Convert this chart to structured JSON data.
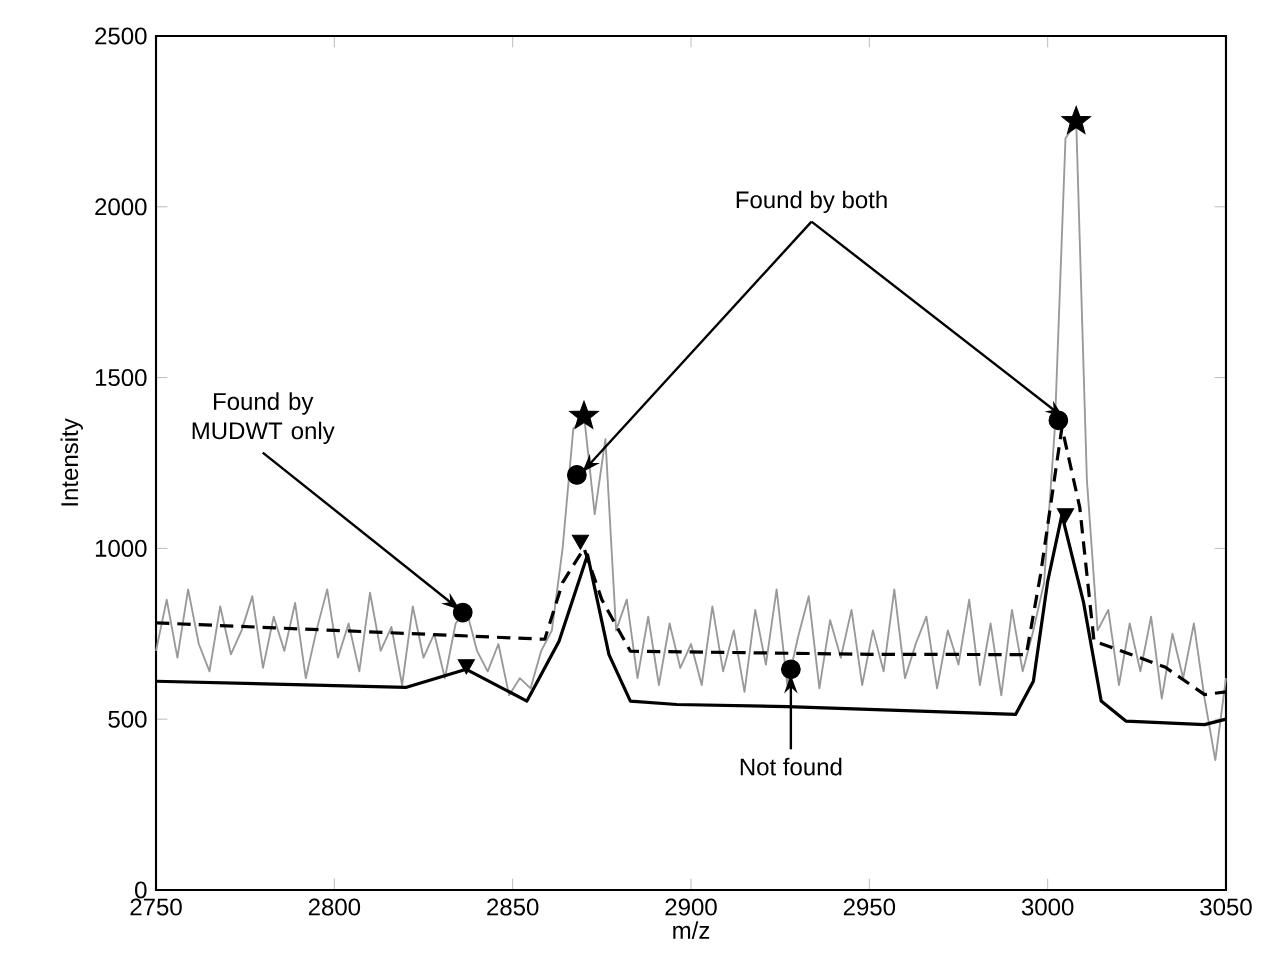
{
  "chart_data": {
    "type": "line",
    "xlabel": "m/z",
    "ylabel": "Intensity",
    "xlim": [
      2750,
      3050
    ],
    "ylim": [
      0,
      2500
    ],
    "xticks": [
      2750,
      2800,
      2850,
      2900,
      2950,
      3000,
      3050
    ],
    "yticks": [
      0,
      500,
      1000,
      1500,
      2000,
      2500
    ],
    "grid": false,
    "series": [
      {
        "color": "#999999",
        "line_style": "solid",
        "x": [
          2750,
          2753,
          2756,
          2759,
          2762,
          2765,
          2768,
          2771,
          2774,
          2777,
          2780,
          2783,
          2786,
          2789,
          2792,
          2795,
          2798,
          2801,
          2804,
          2807,
          2810,
          2813,
          2816,
          2819,
          2822,
          2825,
          2828,
          2831,
          2834,
          2837,
          2840,
          2843,
          2846,
          2849,
          2852,
          2855,
          2858,
          2861,
          2864,
          2867,
          2870,
          2873,
          2876,
          2879,
          2882,
          2885,
          2888,
          2891,
          2894,
          2897,
          2900,
          2903,
          2906,
          2909,
          2912,
          2915,
          2918,
          2921,
          2924,
          2927,
          2930,
          2933,
          2936,
          2939,
          2942,
          2945,
          2948,
          2951,
          2954,
          2957,
          2960,
          2963,
          2966,
          2969,
          2972,
          2975,
          2978,
          2981,
          2984,
          2987,
          2990,
          2993,
          2996,
          2999,
          3002,
          3005,
          3008,
          3011,
          3014,
          3017,
          3020,
          3023,
          3026,
          3029,
          3032,
          3035,
          3038,
          3041,
          3044,
          3047,
          3050
        ],
        "values": [
          700,
          850,
          680,
          880,
          720,
          640,
          830,
          690,
          760,
          860,
          650,
          800,
          700,
          840,
          620,
          760,
          880,
          680,
          780,
          640,
          870,
          700,
          770,
          600,
          830,
          680,
          750,
          620,
          780,
          820,
          700,
          640,
          720,
          570,
          620,
          590,
          700,
          760,
          1000,
          1350,
          1390,
          1100,
          1320,
          760,
          850,
          620,
          800,
          600,
          780,
          650,
          720,
          600,
          830,
          640,
          760,
          580,
          820,
          660,
          880,
          600,
          740,
          860,
          590,
          790,
          680,
          820,
          600,
          760,
          640,
          880,
          620,
          720,
          800,
          590,
          760,
          660,
          850,
          600,
          780,
          570,
          820,
          640,
          760,
          900,
          1350,
          2200,
          2250,
          1200,
          760,
          820,
          600,
          780,
          640,
          800,
          560,
          750,
          620,
          780,
          560,
          380,
          620
        ]
      },
      {
        "color": "#000000",
        "line_style": "dashed",
        "x": [
          2750,
          2800,
          2859,
          2864,
          2870,
          2875,
          2883,
          2950,
          2994,
          2998,
          3004,
          3009,
          3013,
          3018,
          3033,
          3044,
          3050
        ],
        "values": [
          782,
          760,
          734,
          900,
          1000,
          850,
          699,
          690,
          689,
          923,
          1354,
          1120,
          728,
          710,
          652,
          572,
          580
        ]
      },
      {
        "color": "#000000",
        "line_style": "solid",
        "x": [
          2750,
          2820,
          2837,
          2854,
          2863,
          2871,
          2877,
          2883,
          2896,
          2927,
          2991,
          2996,
          3000,
          3004,
          3010,
          3015,
          3022,
          3044,
          3050
        ],
        "values": [
          611,
          593,
          646,
          553,
          728,
          981,
          689,
          553,
          543,
          537,
          514,
          611,
          903,
          1098,
          845,
          553,
          494,
          484,
          500
        ]
      },
      {
        "type": "scatter",
        "color": "#000000",
        "marker": "circle",
        "x": [
          2836,
          2868,
          2928,
          3003
        ],
        "values": [
          812,
          1215,
          646,
          1375
        ]
      },
      {
        "type": "scatter",
        "color": "#000000",
        "marker": "star",
        "x": [
          2870,
          3008
        ],
        "values": [
          1387,
          2250
        ]
      },
      {
        "type": "scatter",
        "color": "#000000",
        "marker": "triangle",
        "x": [
          2837,
          2869,
          3005
        ],
        "values": [
          660,
          1025,
          1102
        ]
      }
    ],
    "annotations": [
      {
        "text": "Found by MUDWT only",
        "x": 2836,
        "y": 812
      },
      {
        "text": "Not found",
        "x": 2928,
        "y": 646
      },
      {
        "text": "Found by both",
        "x": 2868,
        "y": 1215
      }
    ]
  }
}
